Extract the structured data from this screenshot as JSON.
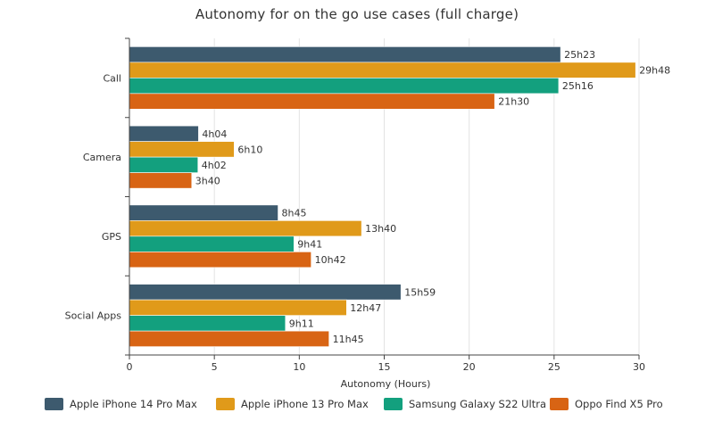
{
  "chart_data": {
    "type": "bar",
    "orientation": "horizontal",
    "title": "Autonomy for on the go use cases (full charge)",
    "xlabel": "Autonomy (Hours)",
    "ylabel": "",
    "xlim": [
      0,
      30
    ],
    "xticks": [
      0,
      5,
      10,
      15,
      20,
      25,
      30
    ],
    "grid": true,
    "legend_position": "bottom",
    "categories": [
      "Call",
      "Camera",
      "GPS",
      "Social Apps"
    ],
    "series": [
      {
        "name": "Apple iPhone 14 Pro Max",
        "color": "#3d5a6e",
        "values": [
          25.383,
          4.067,
          8.75,
          15.983
        ],
        "labels": [
          "25h23",
          "4h04",
          "8h45",
          "15h59"
        ]
      },
      {
        "name": "Apple iPhone 13 Pro Max",
        "color": "#e09a1a",
        "values": [
          29.8,
          6.167,
          13.667,
          12.783
        ],
        "labels": [
          "29h48",
          "6h10",
          "13h40",
          "12h47"
        ]
      },
      {
        "name": "Samsung Galaxy S22 Ultra",
        "color": "#13a07e",
        "values": [
          25.267,
          4.033,
          9.683,
          9.183
        ],
        "labels": [
          "25h16",
          "4h02",
          "9h41",
          "9h11"
        ]
      },
      {
        "name": "Oppo Find X5 Pro",
        "color": "#d86414",
        "values": [
          21.5,
          3.667,
          10.7,
          11.75
        ],
        "labels": [
          "21h30",
          "3h40",
          "10h42",
          "11h45"
        ]
      }
    ]
  }
}
